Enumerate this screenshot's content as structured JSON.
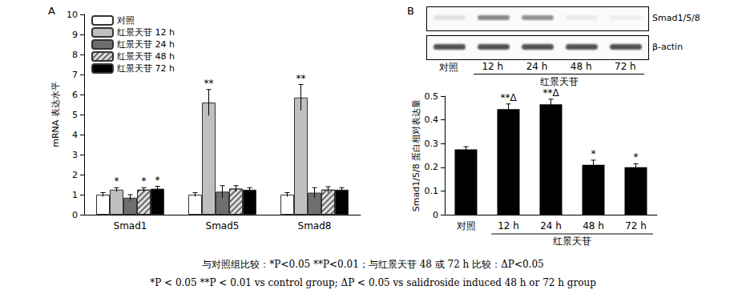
{
  "chart_data": [
    {
      "type": "bar",
      "panel": "A",
      "ylabel": "mRNA 表达水平",
      "categories": [
        "Smad1",
        "Smad5",
        "Smad8"
      ],
      "series": [
        {
          "name": "对照",
          "color": "#ffffff",
          "values": [
            1.0,
            1.0,
            1.0
          ],
          "errors": [
            0.1,
            0.1,
            0.1
          ]
        },
        {
          "name": "红景天苷 12 h",
          "color": "#bfbfbf",
          "values": [
            1.25,
            5.6,
            5.85
          ],
          "errors": [
            0.1,
            0.65,
            0.65
          ],
          "significance": [
            "*",
            "**",
            "**"
          ]
        },
        {
          "name": "红景天苷 24 h",
          "color": "#6e6e6e",
          "values": [
            0.85,
            1.15,
            1.1
          ],
          "errors": [
            0.15,
            0.3,
            0.25
          ]
        },
        {
          "name": "红景天苷 48 h",
          "color": "#e0e0e0",
          "marker": "hatch",
          "values": [
            1.25,
            1.3,
            1.25
          ],
          "errors": [
            0.1,
            0.15,
            0.15
          ],
          "significance": [
            "*",
            null,
            null
          ]
        },
        {
          "name": "红景天苷 72 h",
          "color": "#000000",
          "values": [
            1.3,
            1.25,
            1.25
          ],
          "errors": [
            0.12,
            0.1,
            0.1
          ],
          "significance": [
            "*",
            null,
            null
          ]
        }
      ],
      "ylim": [
        0,
        10
      ],
      "yticks": [
        0,
        1,
        2,
        3,
        4,
        5,
        6,
        7,
        8,
        9,
        10
      ],
      "grid": false,
      "legend": "upper left"
    },
    {
      "type": "bar",
      "panel": "B",
      "ylabel": "Smad1/5/8 蛋白相对表达量",
      "categories": [
        "对照",
        "12 h",
        "24 h",
        "48 h",
        "72 h"
      ],
      "category_group": {
        "label": "红景天苷",
        "categories": [
          "12 h",
          "24 h",
          "48 h",
          "72 h"
        ]
      },
      "values": [
        0.275,
        0.445,
        0.465,
        0.21,
        0.2
      ],
      "errors": [
        0.012,
        0.022,
        0.022,
        0.02,
        0.015
      ],
      "significance": [
        null,
        "**Δ",
        "**Δ",
        "*",
        "*"
      ],
      "color": "#000000",
      "ylim": [
        0,
        0.5
      ],
      "yticks": [
        0,
        0.1,
        0.2,
        0.3,
        0.4,
        0.5
      ],
      "grid": false
    }
  ],
  "blot": {
    "rows": [
      "Smad1/5/8",
      "β-actin"
    ],
    "lanes": [
      "对照",
      "12 h",
      "24 h",
      "48 h",
      "72 h"
    ],
    "group": "红景天苷"
  },
  "footnotes": [
    "与对照组比较：*P<0.05   **P<0.01；与红景天苷 48 或 72 h 比较：ΔP<0.05",
    "*P < 0.05   **P < 0.01 vs control group; ΔP < 0.05 vs salidroside induced 48 h or 72 h group"
  ]
}
